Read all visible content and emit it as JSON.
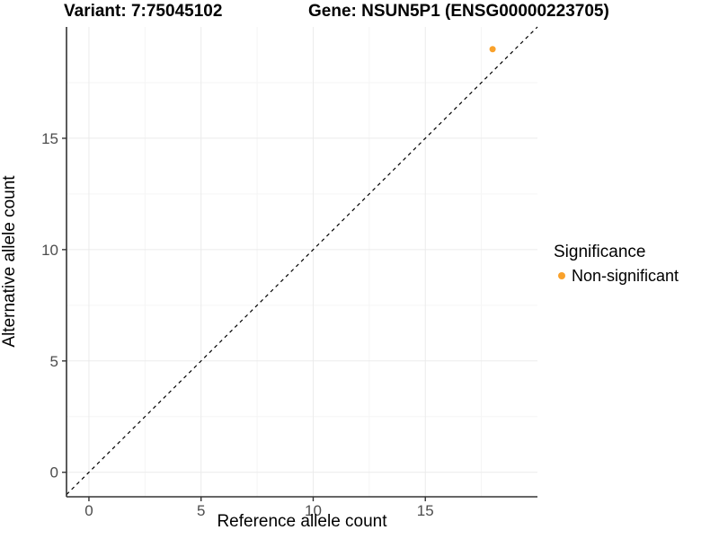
{
  "header": {
    "variant_title": "Variant: 7:75045102",
    "gene_title": "Gene: NSUN5P1 (ENSG00000223705)"
  },
  "axes": {
    "x_label": "Reference allele count",
    "y_label": "Alternative allele count"
  },
  "legend": {
    "title": "Significance",
    "items": [
      {
        "label": "Non-significant",
        "color": "#F9A12B"
      }
    ]
  },
  "chart_data": {
    "type": "scatter",
    "title": "Variant: 7:75045102 | Gene: NSUN5P1 (ENSG00000223705)",
    "xlabel": "Reference allele count",
    "ylabel": "Alternative allele count",
    "xlim": [
      -1,
      20
    ],
    "ylim": [
      -1.1,
      20
    ],
    "x_ticks": [
      0,
      5,
      10,
      15
    ],
    "y_ticks": [
      0,
      5,
      10,
      15
    ],
    "x_minor_ticks": [
      2.5,
      7.5,
      12.5,
      17.5
    ],
    "y_minor_ticks": [
      2.5,
      7.5,
      12.5,
      17.5
    ],
    "grid": true,
    "legend_position": "right",
    "identity_line": {
      "style": "dashed",
      "color": "#000000",
      "from": -1,
      "to": 20
    },
    "series": [
      {
        "name": "Non-significant",
        "color": "#F9A12B",
        "points": [
          {
            "x": 18,
            "y": 19
          }
        ]
      }
    ],
    "colors": {
      "grid_major": "#EBEBEB",
      "grid_minor": "#F5F5F5",
      "axis_line": "#333333",
      "tick_label": "#4D4D4D"
    }
  }
}
